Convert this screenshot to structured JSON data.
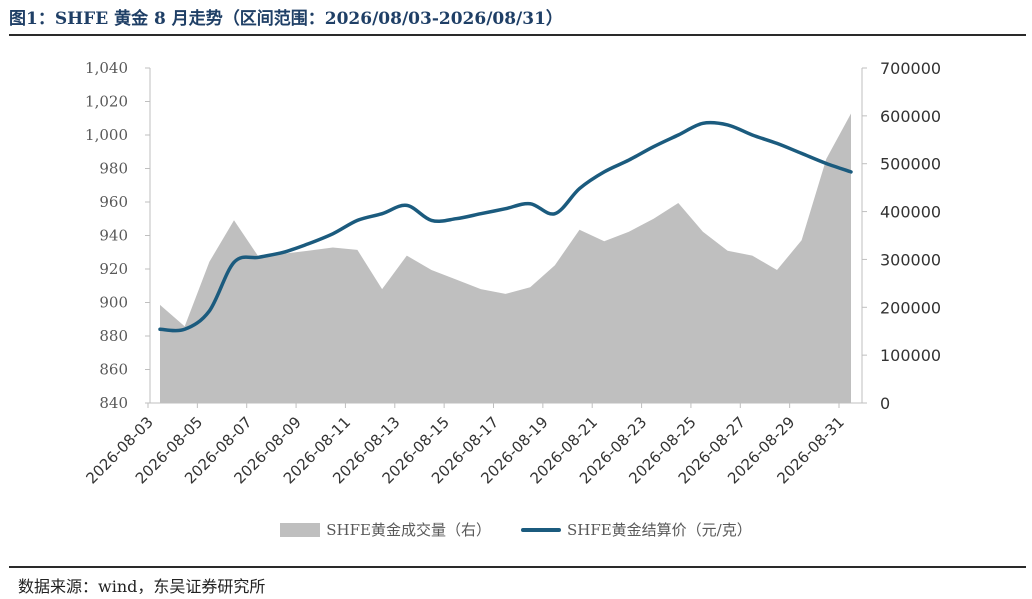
{
  "title": "图1：SHFE 黄金 8 月走势（区间范围：2026/08/03-2026/08/31）",
  "source": "数据来源：wind，东吴证券研究所",
  "chart_data": {
    "type": "line+area",
    "x_ticks": [
      "2026-08-03",
      "2026-08-05",
      "2026-08-07",
      "2026-08-09",
      "2026-08-11",
      "2026-08-13",
      "2026-08-15",
      "2026-08-17",
      "2026-08-19",
      "2026-08-21",
      "2026-08-23",
      "2026-08-25",
      "2026-08-27",
      "2026-08-29",
      "2026-08-31"
    ],
    "left_axis": {
      "min": 840,
      "max": 1040,
      "ticks": [
        "840",
        "860",
        "880",
        "900",
        "920",
        "940",
        "960",
        "980",
        "1,000",
        "1,020",
        "1,040"
      ]
    },
    "right_axis": {
      "min": 0,
      "max": 700000,
      "ticks": [
        "0",
        "100000",
        "200000",
        "300000",
        "400000",
        "500000",
        "600000",
        "700000"
      ]
    },
    "series": [
      {
        "name": "SHFE黄金成交量（右）",
        "type": "area",
        "axis": "right",
        "color": "#bfbfbf",
        "points": [
          [
            "2026-08-03",
            205000
          ],
          [
            "2026-08-04",
            160000
          ],
          [
            "2026-08-05",
            295000
          ],
          [
            "2026-08-06",
            382000
          ],
          [
            "2026-08-07",
            305000
          ],
          [
            "2026-08-08",
            312000
          ],
          [
            "2026-08-09",
            318000
          ],
          [
            "2026-08-10",
            325000
          ],
          [
            "2026-08-11",
            320000
          ],
          [
            "2026-08-12",
            238000
          ],
          [
            "2026-08-13",
            308000
          ],
          [
            "2026-08-14",
            278000
          ],
          [
            "2026-08-15",
            258000
          ],
          [
            "2026-08-16",
            238000
          ],
          [
            "2026-08-17",
            228000
          ],
          [
            "2026-08-18",
            242000
          ],
          [
            "2026-08-19",
            288000
          ],
          [
            "2026-08-20",
            362000
          ],
          [
            "2026-08-21",
            338000
          ],
          [
            "2026-08-22",
            358000
          ],
          [
            "2026-08-23",
            385000
          ],
          [
            "2026-08-24",
            418000
          ],
          [
            "2026-08-25",
            358000
          ],
          [
            "2026-08-26",
            318000
          ],
          [
            "2026-08-27",
            308000
          ],
          [
            "2026-08-28",
            278000
          ],
          [
            "2026-08-29",
            340000
          ],
          [
            "2026-08-30",
            510000
          ],
          [
            "2026-08-31",
            605000
          ]
        ]
      },
      {
        "name": "SHFE黄金结算价（元/克）",
        "type": "line",
        "axis": "left",
        "color": "#1b5b7e",
        "points": [
          [
            "2026-08-03",
            884
          ],
          [
            "2026-08-04",
            884
          ],
          [
            "2026-08-05",
            895
          ],
          [
            "2026-08-06",
            924
          ],
          [
            "2026-08-07",
            927
          ],
          [
            "2026-08-08",
            930
          ],
          [
            "2026-08-09",
            935
          ],
          [
            "2026-08-10",
            941
          ],
          [
            "2026-08-11",
            949
          ],
          [
            "2026-08-12",
            953
          ],
          [
            "2026-08-13",
            958
          ],
          [
            "2026-08-14",
            949
          ],
          [
            "2026-08-15",
            950
          ],
          [
            "2026-08-16",
            953
          ],
          [
            "2026-08-17",
            956
          ],
          [
            "2026-08-18",
            959
          ],
          [
            "2026-08-19",
            953
          ],
          [
            "2026-08-20",
            968
          ],
          [
            "2026-08-21",
            978
          ],
          [
            "2026-08-22",
            985
          ],
          [
            "2026-08-23",
            993
          ],
          [
            "2026-08-24",
            1000
          ],
          [
            "2026-08-25",
            1007
          ],
          [
            "2026-08-26",
            1006
          ],
          [
            "2026-08-27",
            1000
          ],
          [
            "2026-08-28",
            995
          ],
          [
            "2026-08-29",
            989
          ],
          [
            "2026-08-30",
            983
          ],
          [
            "2026-08-31",
            978
          ]
        ]
      }
    ],
    "legend_position": "bottom",
    "grid": false
  }
}
